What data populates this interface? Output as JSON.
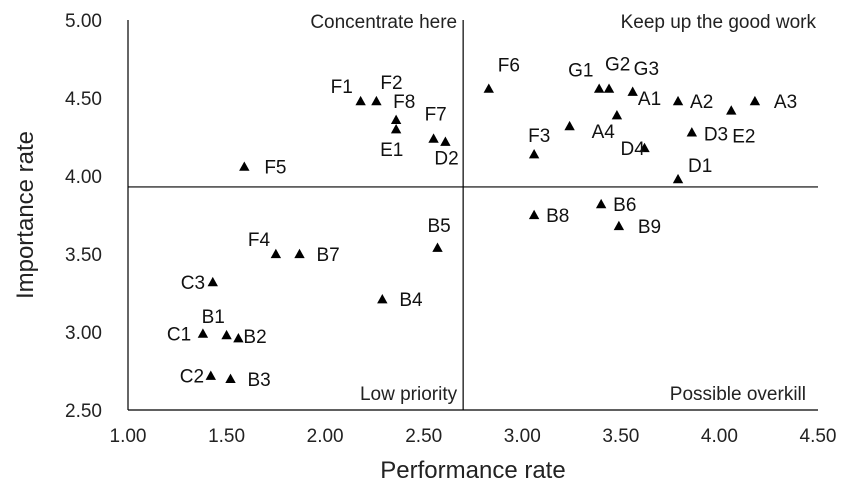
{
  "chart_data": {
    "type": "scatter",
    "xlabel": "Performance rate",
    "ylabel": "Importance rate",
    "xlim": [
      1.0,
      4.5
    ],
    "ylim": [
      2.5,
      5.0
    ],
    "xticks": [
      "1.00",
      "1.50",
      "2.00",
      "2.50",
      "3.00",
      "3.50",
      "4.00",
      "4.50"
    ],
    "yticks": [
      "2.50",
      "3.00",
      "3.50",
      "4.00",
      "4.50",
      "5.00"
    ],
    "divider_x": 2.7,
    "divider_y": 3.93,
    "marker": "triangle",
    "marker_color": "#000000",
    "quadrants": {
      "top_left": "Concentrate here",
      "top_right": "Keep up the good work",
      "bottom_left": "Low priority",
      "bottom_right": "Possible overkill"
    },
    "points": [
      {
        "label": "F1",
        "x": 2.18,
        "y": 4.48
      },
      {
        "label": "F2",
        "x": 2.26,
        "y": 4.48
      },
      {
        "label": "F8",
        "x": 2.36,
        "y": 4.36
      },
      {
        "label": "E1",
        "x": 2.36,
        "y": 4.3
      },
      {
        "label": "F7",
        "x": 2.55,
        "y": 4.24
      },
      {
        "label": "D2",
        "x": 2.61,
        "y": 4.22
      },
      {
        "label": "F5",
        "x": 1.59,
        "y": 4.06
      },
      {
        "label": "F6",
        "x": 2.83,
        "y": 4.56
      },
      {
        "label": "G1",
        "x": 3.39,
        "y": 4.56
      },
      {
        "label": "G2",
        "x": 3.44,
        "y": 4.56
      },
      {
        "label": "G3",
        "x": 3.56,
        "y": 4.54
      },
      {
        "label": "A2",
        "x": 3.79,
        "y": 4.48
      },
      {
        "label": "A3",
        "x": 4.18,
        "y": 4.48
      },
      {
        "label": "E2",
        "x": 4.06,
        "y": 4.42
      },
      {
        "label": "A1",
        "x": 3.48,
        "y": 4.39
      },
      {
        "label": "A4",
        "x": 3.24,
        "y": 4.32
      },
      {
        "label": "D3",
        "x": 3.86,
        "y": 4.28
      },
      {
        "label": "F3",
        "x": 3.06,
        "y": 4.14
      },
      {
        "label": "D4",
        "x": 3.62,
        "y": 4.18
      },
      {
        "label": "D1",
        "x": 3.79,
        "y": 3.98
      },
      {
        "label": "B8",
        "x": 3.06,
        "y": 3.75
      },
      {
        "label": "B6",
        "x": 3.4,
        "y": 3.82
      },
      {
        "label": "B9",
        "x": 3.49,
        "y": 3.68
      },
      {
        "label": "B5",
        "x": 2.57,
        "y": 3.54
      },
      {
        "label": "F4",
        "x": 1.75,
        "y": 3.5
      },
      {
        "label": "B7",
        "x": 1.87,
        "y": 3.5
      },
      {
        "label": "C3",
        "x": 1.43,
        "y": 3.32
      },
      {
        "label": "B4",
        "x": 2.29,
        "y": 3.21
      },
      {
        "label": "C1",
        "x": 1.38,
        "y": 2.99
      },
      {
        "label": "B1",
        "x": 1.5,
        "y": 2.98
      },
      {
        "label": "B2",
        "x": 1.56,
        "y": 2.96
      },
      {
        "label": "C2",
        "x": 1.42,
        "y": 2.72
      },
      {
        "label": "B3",
        "x": 1.52,
        "y": 2.7
      }
    ]
  }
}
